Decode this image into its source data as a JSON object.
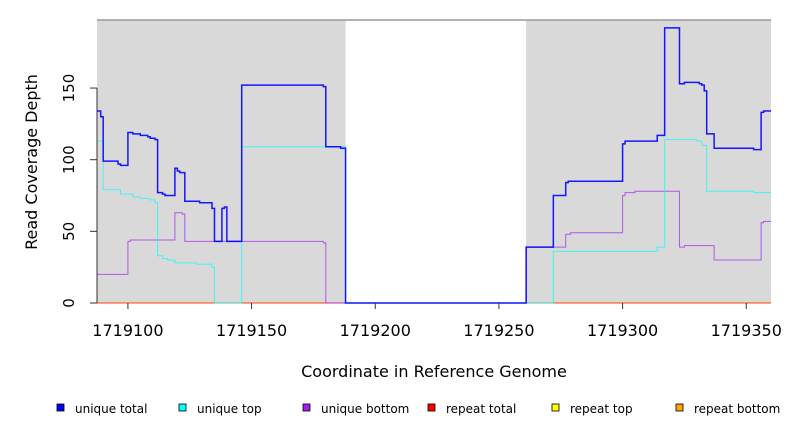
{
  "chart_data": {
    "type": "line",
    "step": true,
    "xlabel": "Coordinate in Reference Genome",
    "ylabel": "Read Coverage Depth",
    "xlim": [
      1719087.5,
      1719360
    ],
    "ylim": [
      0,
      198
    ],
    "xticks": [
      1719100,
      1719150,
      1719200,
      1719250,
      1719300,
      1719350
    ],
    "xtick_labels": [
      "1719100",
      "1719150",
      "1719200",
      "1719250",
      "1719300",
      "1719350"
    ],
    "yticks": [
      0,
      50,
      100,
      150
    ],
    "ytick_labels": [
      "0",
      "50",
      "100",
      "150"
    ],
    "shaded_regions": [
      [
        1719087.5,
        1719188
      ],
      [
        1719261,
        1719360
      ]
    ],
    "legend_position": "bottom",
    "series": [
      {
        "name": "unique total",
        "color": "#0000ff",
        "points": [
          [
            1719087.5,
            134
          ],
          [
            1719089,
            130
          ],
          [
            1719090,
            99
          ],
          [
            1719096,
            97
          ],
          [
            1719097,
            96
          ],
          [
            1719100,
            119
          ],
          [
            1719102,
            118
          ],
          [
            1719105,
            117
          ],
          [
            1719108,
            116
          ],
          [
            1719109,
            115
          ],
          [
            1719111,
            114
          ],
          [
            1719112,
            77
          ],
          [
            1719114,
            76
          ],
          [
            1719115,
            75
          ],
          [
            1719119,
            94
          ],
          [
            1719120,
            92
          ],
          [
            1719121,
            91
          ],
          [
            1719123,
            71
          ],
          [
            1719129,
            70
          ],
          [
            1719134,
            66
          ],
          [
            1719135,
            43
          ],
          [
            1719138,
            66
          ],
          [
            1719139,
            67
          ],
          [
            1719140,
            43
          ],
          [
            1719146,
            152
          ],
          [
            1719179,
            151
          ],
          [
            1719180,
            109
          ],
          [
            1719186,
            108
          ],
          [
            1719188,
            0
          ],
          [
            1719261,
            39
          ],
          [
            1719272,
            75
          ],
          [
            1719277,
            84
          ],
          [
            1719278,
            85
          ],
          [
            1719300,
            111
          ],
          [
            1719301,
            113
          ],
          [
            1719314,
            117
          ],
          [
            1719317,
            192
          ],
          [
            1719323,
            153
          ],
          [
            1719325,
            154
          ],
          [
            1719331,
            153
          ],
          [
            1719332,
            152
          ],
          [
            1719333,
            148
          ],
          [
            1719334,
            118
          ],
          [
            1719337,
            108
          ],
          [
            1719353,
            107
          ],
          [
            1719356,
            133
          ],
          [
            1719357,
            134
          ],
          [
            1719360,
            134
          ]
        ]
      },
      {
        "name": "unique top",
        "color": "#00ffff",
        "points": [
          [
            1719087.5,
            113
          ],
          [
            1719090,
            79
          ],
          [
            1719097,
            76
          ],
          [
            1719102,
            74
          ],
          [
            1719105,
            73
          ],
          [
            1719109,
            72
          ],
          [
            1719111,
            70
          ],
          [
            1719112,
            33
          ],
          [
            1719114,
            31
          ],
          [
            1719116,
            30
          ],
          [
            1719119,
            28
          ],
          [
            1719123,
            28
          ],
          [
            1719128,
            27
          ],
          [
            1719134,
            25
          ],
          [
            1719135,
            0
          ],
          [
            1719146,
            109
          ],
          [
            1719188,
            0
          ],
          [
            1719272,
            36
          ],
          [
            1719314,
            39
          ],
          [
            1719317,
            114
          ],
          [
            1719330,
            113
          ],
          [
            1719332,
            110
          ],
          [
            1719334,
            78
          ],
          [
            1719353,
            77
          ],
          [
            1719360,
            77
          ]
        ]
      },
      {
        "name": "unique bottom",
        "color": "#a020f0",
        "points": [
          [
            1719087.5,
            20
          ],
          [
            1719100,
            43
          ],
          [
            1719101,
            44
          ],
          [
            1719119,
            63
          ],
          [
            1719122,
            62
          ],
          [
            1719123,
            43
          ],
          [
            1719179,
            42
          ],
          [
            1719180,
            0
          ],
          [
            1719261,
            39
          ],
          [
            1719277,
            48
          ],
          [
            1719279,
            49
          ],
          [
            1719300,
            75
          ],
          [
            1719301,
            77
          ],
          [
            1719305,
            78
          ],
          [
            1719323,
            39
          ],
          [
            1719325,
            40
          ],
          [
            1719337,
            30
          ],
          [
            1719356,
            56
          ],
          [
            1719357,
            57
          ],
          [
            1719360,
            57
          ]
        ]
      },
      {
        "name": "repeat total",
        "color": "#ff0000",
        "points": [
          [
            1719087.5,
            0
          ],
          [
            1719360,
            0
          ]
        ]
      },
      {
        "name": "repeat top",
        "color": "#ffff00",
        "points": [
          [
            1719087.5,
            0
          ],
          [
            1719360,
            0
          ]
        ]
      },
      {
        "name": "repeat bottom",
        "color": "#ffa500",
        "points": [
          [
            1719087.5,
            0
          ],
          [
            1719360,
            0
          ]
        ]
      }
    ]
  }
}
